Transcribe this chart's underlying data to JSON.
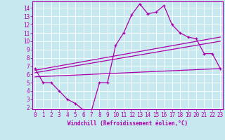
{
  "background_color": "#c8e8f0",
  "line_color": "#aa00aa",
  "xlim": [
    -0.3,
    23.3
  ],
  "ylim": [
    1.8,
    14.8
  ],
  "yticks": [
    2,
    3,
    4,
    5,
    6,
    7,
    8,
    9,
    10,
    11,
    12,
    13,
    14
  ],
  "xticks": [
    0,
    1,
    2,
    3,
    4,
    5,
    6,
    7,
    8,
    9,
    10,
    11,
    12,
    13,
    14,
    15,
    16,
    17,
    18,
    19,
    20,
    21,
    22,
    23
  ],
  "xlabel": "Windchill (Refroidissement éolien,°C)",
  "curve1": [
    6.7,
    5.0,
    5.0,
    4.0,
    3.0,
    2.5,
    1.7,
    1.6,
    5.0,
    5.0,
    9.5,
    11.0,
    13.2,
    14.5,
    13.3,
    13.5,
    14.3,
    12.0,
    11.0,
    10.5,
    10.3,
    8.5,
    8.5,
    6.7
  ],
  "linear_lines": [
    {
      "x0": 0,
      "y0": 6.5,
      "x1": 23,
      "y1": 10.5
    },
    {
      "x0": 0,
      "y0": 6.2,
      "x1": 23,
      "y1": 10.0
    },
    {
      "x0": 0,
      "y0": 5.7,
      "x1": 23,
      "y1": 6.7
    }
  ]
}
